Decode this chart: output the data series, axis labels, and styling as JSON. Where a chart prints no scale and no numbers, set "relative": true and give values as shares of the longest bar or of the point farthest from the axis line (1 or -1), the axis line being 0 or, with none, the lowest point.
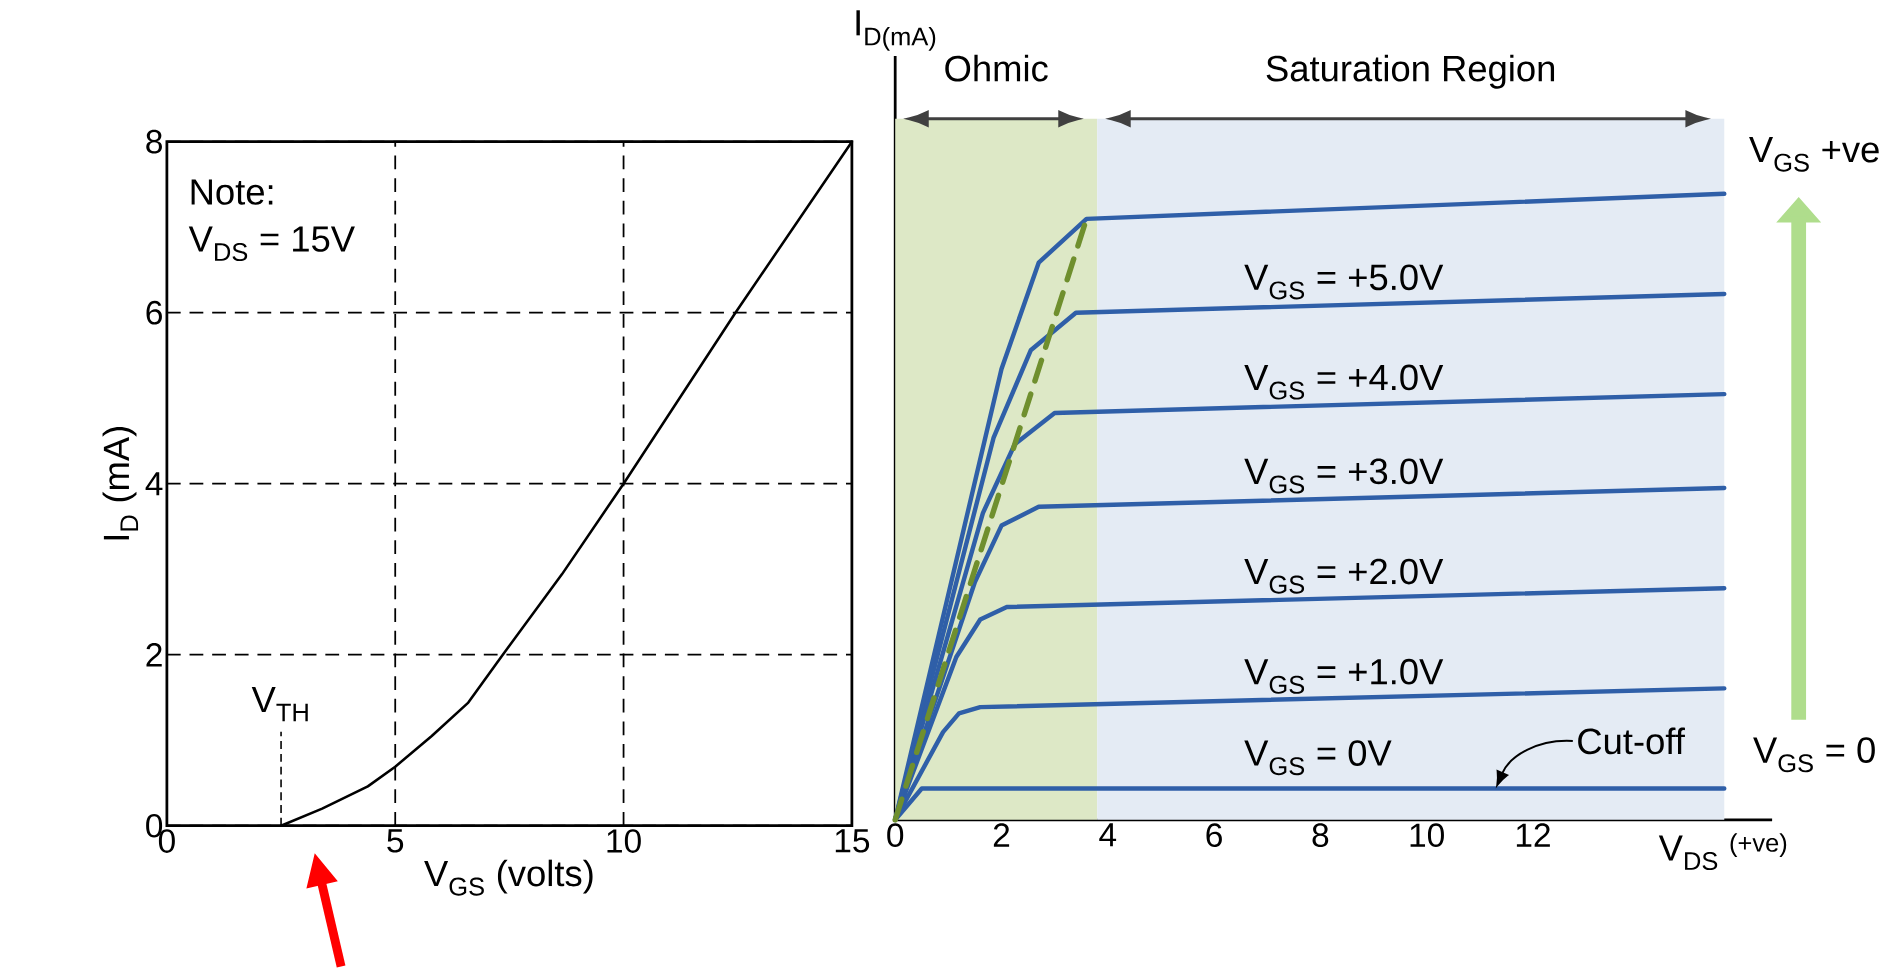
{
  "chart_data": [
    {
      "type": "line",
      "xlabel": "V$_{GS}$ (volts)",
      "ylabel": "I$_{D}$ (mA)",
      "xlim": [
        0,
        15
      ],
      "ylim": [
        0,
        8
      ],
      "xticks": [
        0,
        5,
        10,
        15
      ],
      "yticks": [
        0,
        2,
        4,
        6,
        8
      ],
      "grid": true,
      "annotations": [
        "Note:",
        "V$_{DS}$ = 15V",
        {
          "text": "V$_{TH}$",
          "x": 2.5,
          "y": 0
        }
      ],
      "series": [
        {
          "color": "#000000",
          "x": [
            2.5,
            3.4,
            4.4,
            5.0,
            5.8,
            6.6,
            7.3,
            8.65,
            10,
            12.45,
            15
          ],
          "values": [
            0,
            0.2,
            0.46,
            0.69,
            1.05,
            1.44,
            1.96,
            2.94,
            4.0,
            6.0,
            8.0
          ]
        }
      ]
    },
    {
      "type": "line",
      "relative": true,
      "xlabel": "V$_{DS}$ $^{(+ve)}$",
      "ylabel": "I$_{D(mA)}$",
      "xlim": [
        0,
        16.5
      ],
      "xticks": [
        0,
        2,
        4,
        6,
        8,
        10,
        12
      ],
      "bands": [
        {
          "axis": "x",
          "from": 0,
          "to": 3.8,
          "label": "Ohmic",
          "color": "#dde8c6"
        },
        {
          "axis": "x",
          "from": 3.8,
          "to": 15.6,
          "label": "Saturation Region",
          "color": "#e4ebf4"
        }
      ],
      "annotations": [
        {
          "text": "Cut-off",
          "x": 11.3,
          "y": 0.05
        },
        "V$_{GS}$ +ve",
        "V$_{GS}$ = 0"
      ],
      "series": [
        {
          "name": "V$_{GS}$ = 0V",
          "color": "#2f5fa8",
          "x": [
            0,
            0.5,
            15.6
          ],
          "values": [
            0,
            0.05,
            0.05
          ]
        },
        {
          "name": "V$_{GS}$ = +1.0V",
          "color": "#2f5fa8",
          "x": [
            0,
            0.9,
            1.2,
            1.6,
            15.6
          ],
          "values": [
            0,
            0.14,
            0.17,
            0.18,
            0.21
          ]
        },
        {
          "name": "V$_{GS}$ = +2.0V",
          "color": "#2f5fa8",
          "x": [
            0,
            1.15,
            1.6,
            2.1,
            15.6
          ],
          "values": [
            0,
            0.26,
            0.32,
            0.34,
            0.37
          ]
        },
        {
          "name": "V$_{GS}$ = +3.0V",
          "color": "#2f5fa8",
          "x": [
            0,
            1.5,
            2.0,
            2.7,
            15.6
          ],
          "values": [
            0,
            0.38,
            0.47,
            0.5,
            0.53
          ]
        },
        {
          "name": "V$_{GS}$ = +4.0V",
          "color": "#2f5fa8",
          "x": [
            0,
            1.65,
            2.25,
            3.0,
            15.6
          ],
          "values": [
            0,
            0.49,
            0.6,
            0.65,
            0.68
          ]
        },
        {
          "name": "V$_{GS}$ = +5.0V",
          "color": "#2f5fa8",
          "x": [
            0,
            1.85,
            2.55,
            3.4,
            15.6
          ],
          "values": [
            0,
            0.61,
            0.75,
            0.81,
            0.84
          ]
        },
        {
          "color": "#2f5fa8",
          "x": [
            0,
            2.0,
            2.7,
            3.6,
            15.6
          ],
          "values": [
            0,
            0.72,
            0.89,
            0.96,
            1.0
          ]
        },
        {
          "color": "#6f8f2e",
          "line_style": "dashed",
          "x": [
            0,
            3.6
          ],
          "values": [
            0,
            0.96
          ]
        }
      ]
    }
  ]
}
